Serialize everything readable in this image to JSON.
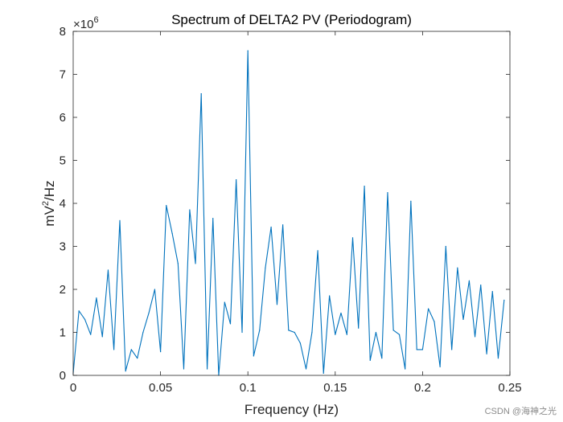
{
  "chart_data": {
    "type": "line",
    "title": "Spectrum of DELTA2 PV (Periodogram)",
    "xlabel": "Frequency (Hz)",
    "ylabel_base": "mV",
    "ylabel_sup": "2",
    "ylabel_tail": "/Hz",
    "y_exponent_prefix": "×10",
    "y_exponent_power": "6",
    "xlim": [
      0,
      0.25
    ],
    "ylim": [
      0,
      8
    ],
    "xticks": [
      0,
      0.05,
      0.1,
      0.15,
      0.2,
      0.25
    ],
    "xtick_labels": [
      "0",
      "0.05",
      "0.1",
      "0.15",
      "0.2",
      "0.25"
    ],
    "yticks": [
      0,
      1,
      2,
      3,
      4,
      5,
      6,
      7,
      8
    ],
    "ytick_labels": [
      "0",
      "1",
      "2",
      "3",
      "4",
      "5",
      "6",
      "7",
      "8"
    ],
    "grid": false,
    "series": [
      {
        "name": "Periodogram",
        "color": "#0072bd",
        "x": [
          0,
          0.0033,
          0.0067,
          0.01,
          0.0133,
          0.0167,
          0.02,
          0.0233,
          0.0267,
          0.03,
          0.0333,
          0.0367,
          0.04,
          0.0433,
          0.0467,
          0.05,
          0.0533,
          0.0567,
          0.06,
          0.0633,
          0.0667,
          0.07,
          0.0733,
          0.0767,
          0.08,
          0.0833,
          0.0867,
          0.09,
          0.0933,
          0.0967,
          0.1,
          0.1033,
          0.1067,
          0.11,
          0.1133,
          0.1167,
          0.12,
          0.1233,
          0.1267,
          0.13,
          0.1333,
          0.1367,
          0.14,
          0.1433,
          0.1467,
          0.15,
          0.1533,
          0.1567,
          0.16,
          0.1633,
          0.1667,
          0.17,
          0.1733,
          0.1767,
          0.18,
          0.1833,
          0.1867,
          0.19,
          0.1933,
          0.1967,
          0.2,
          0.2033,
          0.2067,
          0.21,
          0.2133,
          0.2167,
          0.22,
          0.2233,
          0.2267,
          0.23,
          0.2333,
          0.2367,
          0.24,
          0.2433,
          0.2467
        ],
        "values": [
          0.05,
          1.5,
          1.3,
          0.95,
          1.8,
          0.9,
          2.45,
          0.6,
          3.6,
          0.1,
          0.6,
          0.4,
          1.0,
          1.45,
          2.0,
          0.55,
          3.95,
          3.3,
          2.6,
          0.15,
          3.85,
          2.6,
          6.55,
          0.15,
          3.65,
          0.0,
          1.7,
          1.2,
          4.55,
          1.0,
          7.55,
          0.45,
          1.05,
          2.5,
          3.45,
          1.65,
          3.5,
          1.05,
          1.0,
          0.75,
          0.15,
          1.0,
          2.9,
          0.05,
          1.85,
          0.95,
          1.45,
          0.95,
          3.2,
          1.1,
          4.4,
          0.35,
          1.0,
          0.4,
          4.25,
          1.05,
          0.95,
          0.15,
          4.05,
          0.6,
          0.6,
          1.55,
          1.25,
          0.2,
          3.0,
          0.6,
          2.5,
          1.3,
          2.2,
          0.9,
          2.1,
          0.5,
          1.95,
          0.4,
          1.75
        ]
      }
    ]
  },
  "watermark": "CSDN @海神之光"
}
